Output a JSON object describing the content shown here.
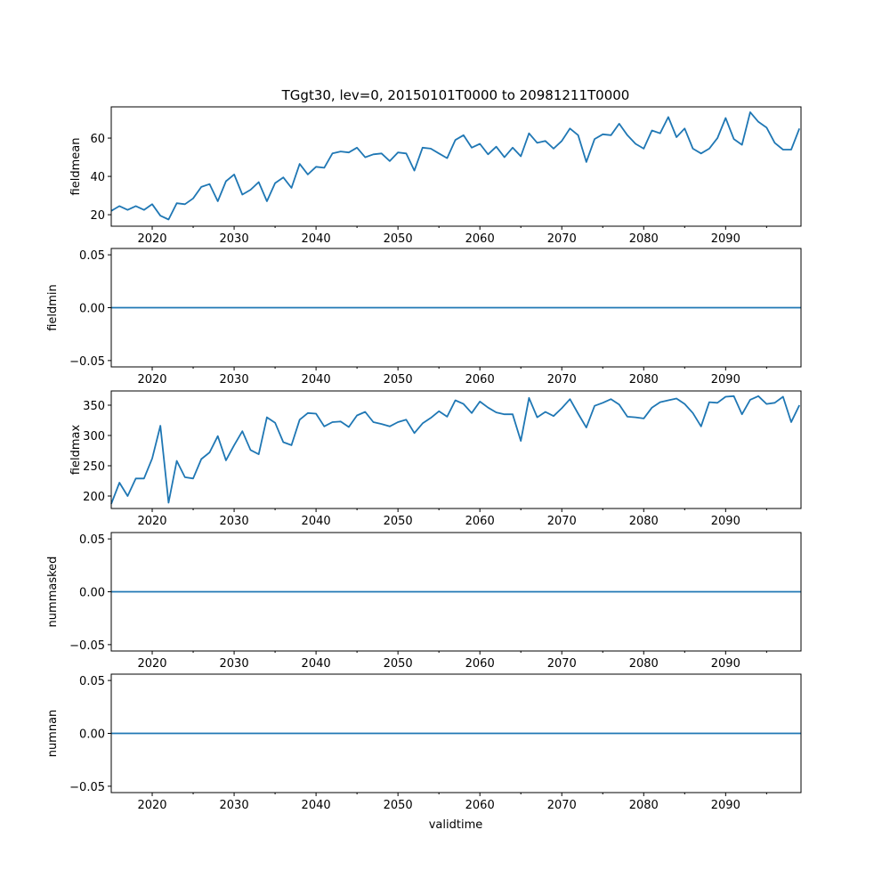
{
  "chart_data": {
    "type": "line",
    "title": "TGgt30, lev=0, 20150101T0000 to 20981211T0000",
    "xlabel": "validtime",
    "xlim": [
      2015.0,
      2099.2
    ],
    "x_ticks": [
      2020,
      2030,
      2040,
      2050,
      2060,
      2070,
      2080,
      2090
    ],
    "x_minor_ticks": [
      2025,
      2035,
      2045,
      2055,
      2065,
      2075,
      2085,
      2095
    ],
    "line_color": "#1f77b4",
    "x": [
      2015,
      2016,
      2017,
      2018,
      2019,
      2020,
      2021,
      2022,
      2023,
      2024,
      2025,
      2026,
      2027,
      2028,
      2029,
      2030,
      2031,
      2032,
      2033,
      2034,
      2035,
      2036,
      2037,
      2038,
      2039,
      2040,
      2041,
      2042,
      2043,
      2044,
      2045,
      2046,
      2047,
      2048,
      2049,
      2050,
      2051,
      2052,
      2053,
      2054,
      2055,
      2056,
      2057,
      2058,
      2059,
      2060,
      2061,
      2062,
      2063,
      2064,
      2065,
      2066,
      2067,
      2068,
      2069,
      2070,
      2071,
      2072,
      2073,
      2074,
      2075,
      2076,
      2077,
      2078,
      2079,
      2080,
      2081,
      2082,
      2083,
      2084,
      2085,
      2086,
      2087,
      2088,
      2089,
      2090,
      2091,
      2092,
      2093,
      2094,
      2095,
      2096,
      2097,
      2098,
      2099
    ],
    "panels": [
      {
        "ylabel": "fieldmean",
        "ylim": [
          14,
          76.3
        ],
        "y_ticks": [
          "20",
          "40",
          "60"
        ],
        "y_tick_values": [
          20,
          40,
          60
        ],
        "values": [
          22,
          24.5,
          22.5,
          24.5,
          22.5,
          25.5,
          19.5,
          17.5,
          26,
          25.5,
          28.5,
          34.5,
          36,
          27,
          37.5,
          41,
          30.5,
          33,
          37,
          27,
          36.5,
          39.5,
          34,
          46.5,
          41,
          45,
          44.5,
          52,
          53,
          52.5,
          55,
          50,
          51.5,
          52,
          48,
          52.5,
          52,
          43,
          55,
          54.5,
          52,
          49.5,
          59,
          61.5,
          55,
          57,
          51.5,
          55.5,
          50,
          55,
          50.5,
          62.5,
          57.5,
          58.5,
          54.5,
          58.5,
          65,
          61.5,
          47.5,
          59.5,
          62,
          61.5,
          67.5,
          61.5,
          57,
          54.5,
          64,
          62.5,
          71,
          60.5,
          65,
          54.5,
          52,
          54.5,
          60,
          70.5,
          59.5,
          56.5,
          73.5,
          68.5,
          65.5,
          57.5,
          54,
          54,
          65
        ]
      },
      {
        "ylabel": "fieldmin",
        "ylim": [
          -0.056,
          0.056
        ],
        "y_ticks": [
          "−0.05",
          "0.00",
          "0.05"
        ],
        "y_tick_values": [
          -0.05,
          0,
          0.05
        ],
        "constant": 0
      },
      {
        "ylabel": "fieldmax",
        "ylim": [
          179.4,
          373.5
        ],
        "y_ticks": [
          "200",
          "250",
          "300",
          "350"
        ],
        "y_tick_values": [
          200,
          250,
          300,
          350
        ],
        "values": [
          187,
          222,
          200,
          229,
          229,
          262,
          316,
          189,
          258,
          231,
          229,
          261,
          272,
          299,
          259,
          284,
          307,
          276,
          269,
          330,
          321,
          289,
          284,
          326,
          337,
          336,
          315,
          322,
          323,
          314,
          333,
          339,
          322,
          319,
          315,
          322,
          326,
          304,
          320,
          329,
          340,
          331,
          358,
          352,
          337,
          356,
          346,
          338,
          335,
          335,
          291,
          362,
          330,
          339,
          332,
          345,
          360,
          336,
          313,
          349,
          354,
          360,
          351,
          331,
          330,
          328,
          346,
          355,
          358,
          361,
          352,
          337,
          315,
          355,
          354,
          364,
          365,
          335,
          359,
          365,
          352,
          354,
          364,
          322,
          350
        ]
      },
      {
        "ylabel": "nummasked",
        "ylim": [
          -0.056,
          0.056
        ],
        "y_ticks": [
          "−0.05",
          "0.00",
          "0.05"
        ],
        "y_tick_values": [
          -0.05,
          0,
          0.05
        ],
        "constant": 0
      },
      {
        "ylabel": "numnan",
        "ylim": [
          -0.056,
          0.056
        ],
        "y_ticks": [
          "−0.05",
          "0.00",
          "0.05"
        ],
        "y_tick_values": [
          -0.05,
          0,
          0.05
        ],
        "constant": 0
      }
    ]
  }
}
